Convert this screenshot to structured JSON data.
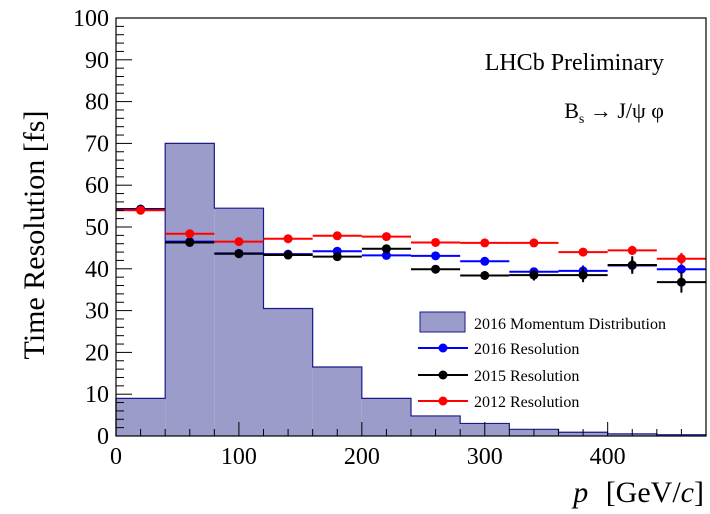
{
  "chart_data": {
    "type": "bar",
    "ylabel": "Time Resolution [fs]",
    "xlabel_italic": "p",
    "xlabel_rest": "[GeV/",
    "xlabel_italic2": "c",
    "xlabel_close": "]",
    "xlim": [
      0,
      480
    ],
    "ylim": [
      0,
      100
    ],
    "x_ticks": [
      0,
      100,
      200,
      300,
      400
    ],
    "y_ticks": [
      0,
      10,
      20,
      30,
      40,
      50,
      60,
      70,
      80,
      90,
      100
    ],
    "annotations": {
      "experiment": "LHCb Preliminary",
      "decay_base": "B",
      "decay_sub": "s",
      "decay_rest": " → J/ψ φ"
    },
    "legend_position": "bottom-right",
    "histogram": {
      "name": "2016 Momentum Distribution",
      "color": "#9c9ccb",
      "edge_color": "#1a1a8c",
      "bins": [
        {
          "x0": 0,
          "x1": 40,
          "y": 9
        },
        {
          "x0": 40,
          "x1": 80,
          "y": 70
        },
        {
          "x0": 80,
          "x1": 120,
          "y": 54.5
        },
        {
          "x0": 120,
          "x1": 160,
          "y": 30.5
        },
        {
          "x0": 160,
          "x1": 200,
          "y": 16.5
        },
        {
          "x0": 200,
          "x1": 240,
          "y": 9
        },
        {
          "x0": 240,
          "x1": 280,
          "y": 4.8
        },
        {
          "x0": 280,
          "x1": 320,
          "y": 3
        },
        {
          "x0": 320,
          "x1": 360,
          "y": 1.6
        },
        {
          "x0": 360,
          "x1": 400,
          "y": 0.9
        },
        {
          "x0": 400,
          "x1": 440,
          "y": 0.5
        },
        {
          "x0": 440,
          "x1": 480,
          "y": 0.3
        }
      ]
    },
    "series": [
      {
        "name": "2016 Resolution",
        "color": "#0000ff",
        "points": [
          {
            "x": 20,
            "xerr": 20,
            "y": 54.3,
            "yerr": 0.4
          },
          {
            "x": 60,
            "xerr": 20,
            "y": 46.5,
            "yerr": 0.4
          },
          {
            "x": 100,
            "xerr": 20,
            "y": 43.7,
            "yerr": 0.4
          },
          {
            "x": 140,
            "xerr": 20,
            "y": 43.5,
            "yerr": 0.4
          },
          {
            "x": 180,
            "xerr": 20,
            "y": 44.2,
            "yerr": 0.4
          },
          {
            "x": 220,
            "xerr": 20,
            "y": 43.2,
            "yerr": 0.5
          },
          {
            "x": 260,
            "xerr": 20,
            "y": 43.1,
            "yerr": 0.6
          },
          {
            "x": 300,
            "xerr": 20,
            "y": 41.8,
            "yerr": 0.8
          },
          {
            "x": 340,
            "xerr": 20,
            "y": 39.3,
            "yerr": 1.0
          },
          {
            "x": 380,
            "xerr": 20,
            "y": 39.5,
            "yerr": 1.3
          },
          {
            "x": 420,
            "xerr": 20,
            "y": 40.8,
            "yerr": 1.6
          },
          {
            "x": 460,
            "xerr": 20,
            "y": 39.9,
            "yerr": 2.0
          }
        ]
      },
      {
        "name": "2015 Resolution",
        "color": "#000000",
        "points": [
          {
            "x": 20,
            "xerr": 20,
            "y": 54.2,
            "yerr": 0.5
          },
          {
            "x": 60,
            "xerr": 20,
            "y": 46.3,
            "yerr": 0.5
          },
          {
            "x": 100,
            "xerr": 20,
            "y": 43.6,
            "yerr": 0.5
          },
          {
            "x": 140,
            "xerr": 20,
            "y": 43.3,
            "yerr": 0.5
          },
          {
            "x": 180,
            "xerr": 20,
            "y": 42.9,
            "yerr": 0.6
          },
          {
            "x": 220,
            "xerr": 20,
            "y": 44.8,
            "yerr": 0.7
          },
          {
            "x": 260,
            "xerr": 20,
            "y": 39.9,
            "yerr": 0.8
          },
          {
            "x": 300,
            "xerr": 20,
            "y": 38.4,
            "yerr": 1.0
          },
          {
            "x": 340,
            "xerr": 20,
            "y": 38.5,
            "yerr": 1.3
          },
          {
            "x": 380,
            "xerr": 20,
            "y": 38.5,
            "yerr": 1.7
          },
          {
            "x": 420,
            "xerr": 20,
            "y": 40.9,
            "yerr": 2.1
          },
          {
            "x": 460,
            "xerr": 20,
            "y": 36.8,
            "yerr": 2.5
          }
        ]
      },
      {
        "name": "2012 Resolution",
        "color": "#ff0000",
        "points": [
          {
            "x": 20,
            "xerr": 20,
            "y": 54.0,
            "yerr": 0.4
          },
          {
            "x": 60,
            "xerr": 20,
            "y": 48.4,
            "yerr": 0.4
          },
          {
            "x": 100,
            "xerr": 20,
            "y": 46.5,
            "yerr": 0.4
          },
          {
            "x": 140,
            "xerr": 20,
            "y": 47.2,
            "yerr": 0.4
          },
          {
            "x": 180,
            "xerr": 20,
            "y": 47.9,
            "yerr": 0.4
          },
          {
            "x": 220,
            "xerr": 20,
            "y": 47.7,
            "yerr": 0.5
          },
          {
            "x": 260,
            "xerr": 20,
            "y": 46.3,
            "yerr": 0.5
          },
          {
            "x": 300,
            "xerr": 20,
            "y": 46.2,
            "yerr": 0.6
          },
          {
            "x": 340,
            "xerr": 20,
            "y": 46.2,
            "yerr": 0.7
          },
          {
            "x": 380,
            "xerr": 20,
            "y": 44.0,
            "yerr": 0.9
          },
          {
            "x": 420,
            "xerr": 20,
            "y": 44.4,
            "yerr": 1.1
          },
          {
            "x": 460,
            "xerr": 20,
            "y": 42.4,
            "yerr": 1.4
          }
        ]
      }
    ]
  }
}
